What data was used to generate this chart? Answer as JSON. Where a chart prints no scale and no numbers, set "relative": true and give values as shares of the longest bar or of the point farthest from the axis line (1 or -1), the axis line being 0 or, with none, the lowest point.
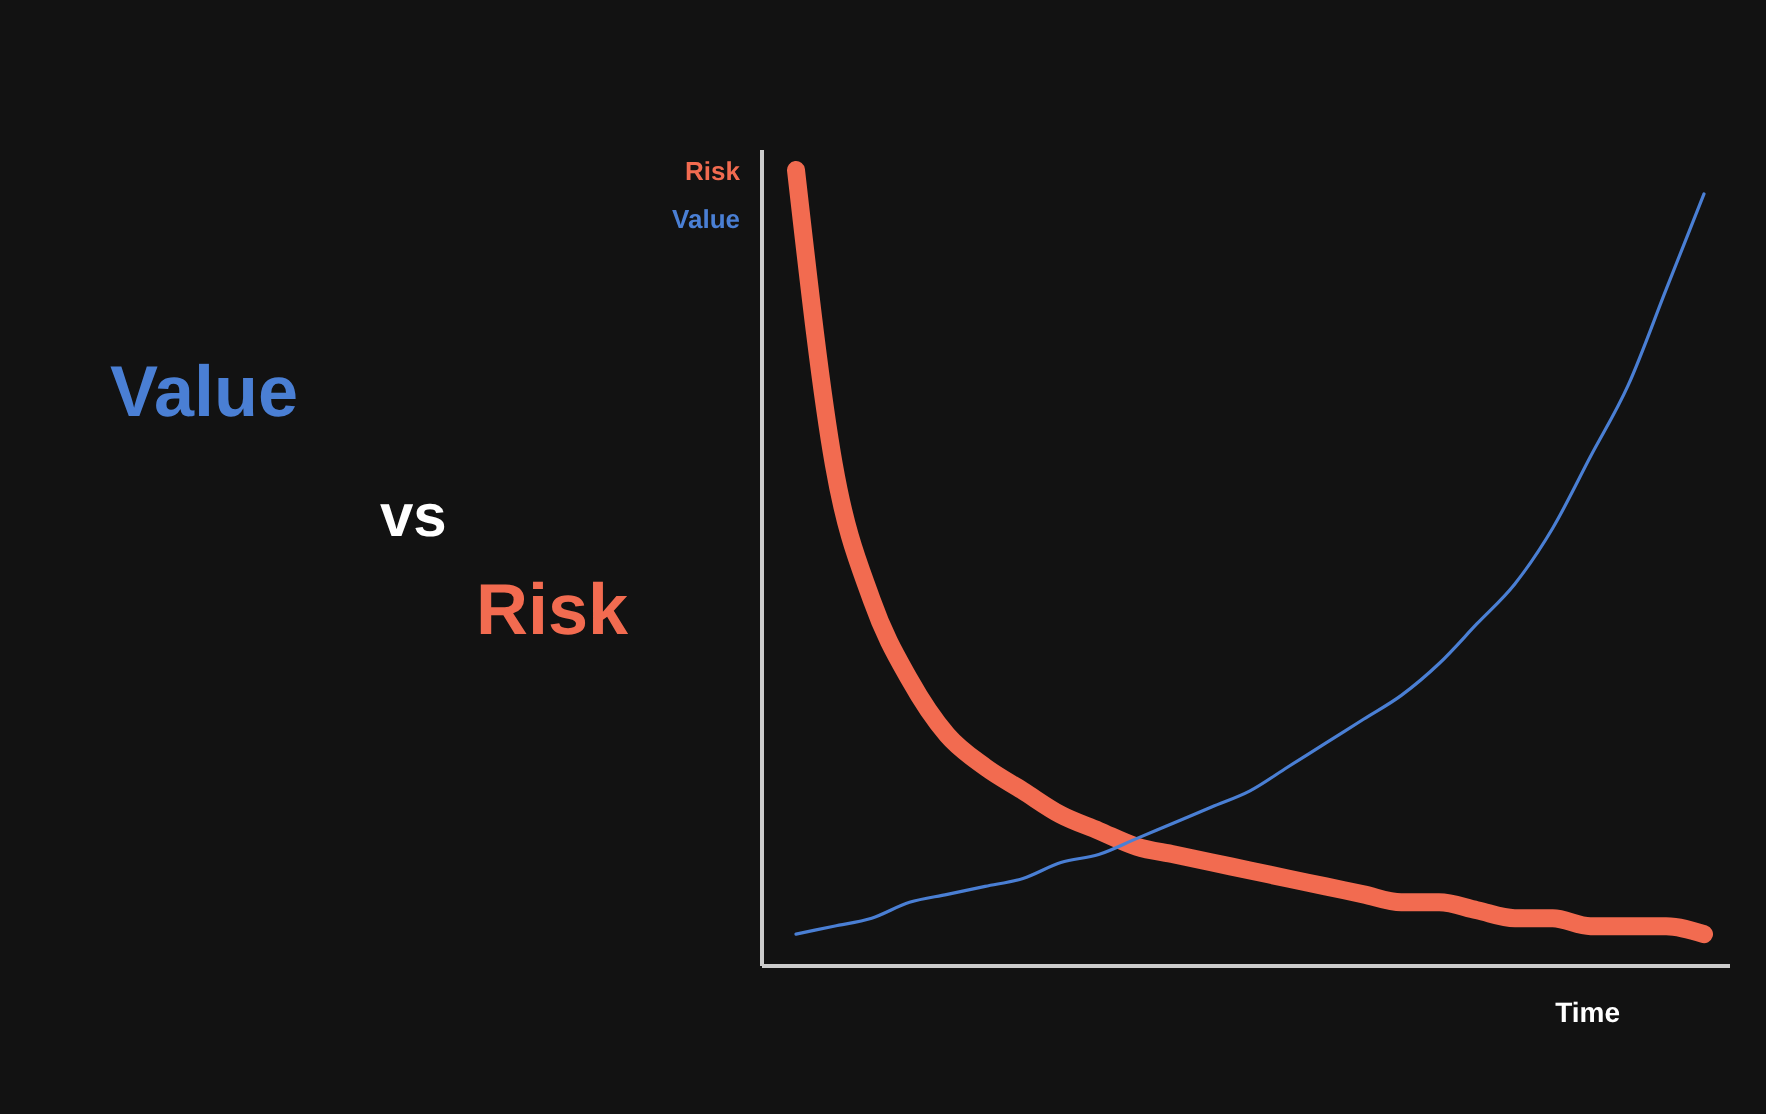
{
  "chart_data": {
    "type": "line",
    "title": "Value vs Risk",
    "xlabel": "Time",
    "relative": true,
    "legend": "top left",
    "marker": "none",
    "line_style": "solid",
    "categories": [
      null,
      null,
      null,
      null,
      null,
      null,
      null,
      null,
      null,
      null,
      null,
      null,
      null,
      null,
      null,
      null,
      null,
      null,
      null,
      null,
      null,
      null,
      null,
      null,
      null
    ],
    "series": [
      {
        "name": "Risk",
        "color": "#f26b50",
        "values": [
          1.0,
          0.63,
          0.46,
          0.36,
          0.29,
          0.25,
          0.22,
          0.19,
          0.17,
          0.15,
          0.14,
          0.13,
          0.12,
          0.11,
          0.1,
          0.09,
          0.08,
          0.08,
          0.07,
          0.06,
          0.06,
          0.05,
          0.05,
          0.05,
          0.04
        ]
      },
      {
        "name": "Value",
        "color": "#4a7fd4",
        "values": [
          0.04,
          0.05,
          0.06,
          0.08,
          0.09,
          0.1,
          0.11,
          0.13,
          0.14,
          0.16,
          0.18,
          0.2,
          0.22,
          0.25,
          0.28,
          0.31,
          0.34,
          0.38,
          0.43,
          0.48,
          0.55,
          0.64,
          0.73,
          0.85,
          0.97
        ]
      }
    ]
  }
}
